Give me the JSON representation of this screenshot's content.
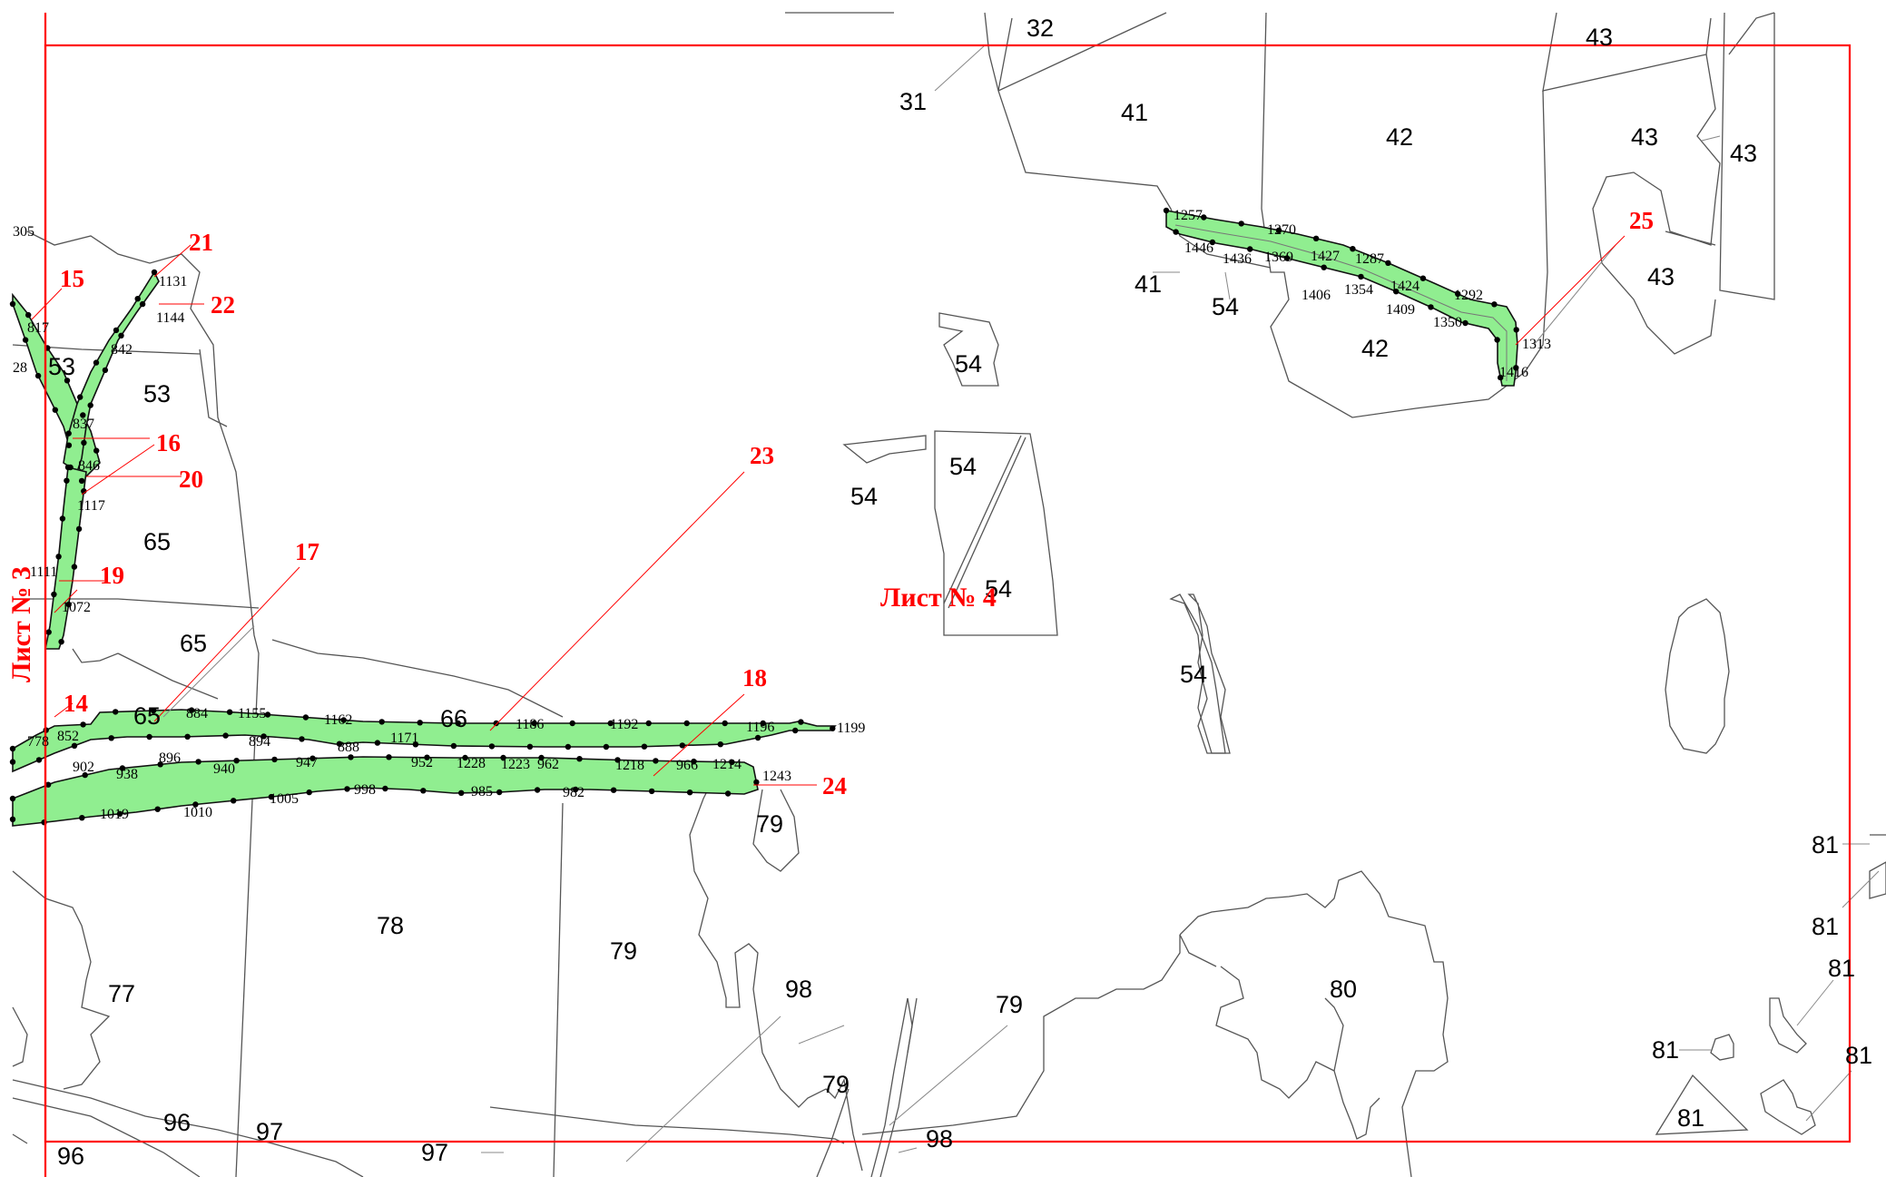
{
  "sheets": {
    "left": "Лист № 3",
    "current": "Лист № 4"
  },
  "parcels": {
    "p31": "31",
    "p32": "32",
    "p41a": "41",
    "p41b": "41",
    "p42a": "42",
    "p42b": "42",
    "p43a": "43",
    "p43b": "43",
    "p43c": "43",
    "p43d": "43",
    "p53a": "53",
    "p53b": "53",
    "p54a": "54",
    "p54b": "54",
    "p54c": "54",
    "p54d": "54",
    "p54e": "54",
    "p54f": "54",
    "p65a": "65",
    "p65b": "65",
    "p65c": "65",
    "p66": "66",
    "p77": "77",
    "p78": "78",
    "p79a": "79",
    "p79b": "79",
    "p79c": "79",
    "p79d": "79",
    "p80": "80",
    "p81a": "81",
    "p81b": "81",
    "p81c": "81",
    "p81d": "81",
    "p81e": "81",
    "p81f": "81",
    "p96a": "96",
    "p96b": "96",
    "p97a": "97",
    "p97b": "97",
    "p98a": "98",
    "p98b": "98"
  },
  "callouts": {
    "c14": "14",
    "c15": "15",
    "c16": "16",
    "c17": "17",
    "c18": "18",
    "c19": "19",
    "c20": "20",
    "c21": "21",
    "c22": "22",
    "c23": "23",
    "c24": "24",
    "c25": "25"
  },
  "points": {
    "t305": "305",
    "t817": "817",
    "t28": "28",
    "t1131": "1131",
    "t1144": "1144",
    "t842": "842",
    "t837": "837",
    "t846": "846",
    "t1117": "1117",
    "t1111": "1111",
    "t1072": "1072",
    "t778": "778",
    "t852": "852",
    "t884": "884",
    "t1155": "1155",
    "t1162": "1162",
    "t1186": "1186",
    "t1192": "1192",
    "t1196": "1196",
    "t1199": "1199",
    "t896": "896",
    "t894": "894",
    "t888": "888",
    "t1171": "1171",
    "t902": "902",
    "t938": "938",
    "t940": "940",
    "t947": "947",
    "t952": "952",
    "t1228": "1228",
    "t1223": "1223",
    "t962": "962",
    "t1218": "1218",
    "t966": "966",
    "t1214": "1214",
    "t1243": "1243",
    "t1019": "1019",
    "t1010": "1010",
    "t1005": "1005",
    "t998": "998",
    "t985": "985",
    "t982": "982",
    "t1257": "1257",
    "t1270": "1270",
    "t1446": "1446",
    "t1436": "1436",
    "t1369": "1369",
    "t1427": "1427",
    "t1287": "1287",
    "t1406": "1406",
    "t1354": "1354",
    "t1424": "1424",
    "t1292": "1292",
    "t1409": "1409",
    "t1350": "1350",
    "t1313": "1313",
    "t1416": "1416"
  }
}
